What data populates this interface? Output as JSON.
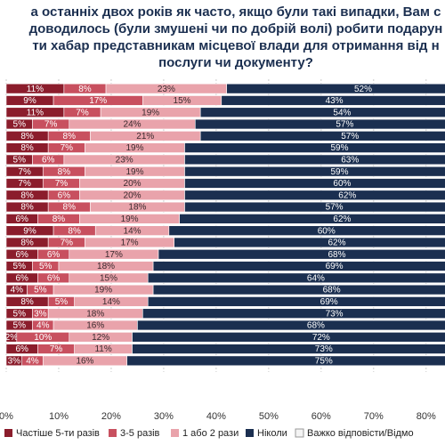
{
  "chart_data": {
    "type": "stacked-bar-horizontal",
    "title_lines": [
      "а останніх двох років як часто, якщо були такі випадки, Вам с",
      "доводилось (були змушені чи по добрій волі) робити подарун",
      "ти хабар представникам місцевої влади для отримання від н",
      "послуги чи документу?"
    ],
    "series": [
      {
        "name": "Частіше 5-ти разів",
        "color": "#8b1d2c",
        "values": [
          11,
          9,
          11,
          5,
          8,
          8,
          5,
          7,
          7,
          8,
          8,
          6,
          9,
          8,
          6,
          5,
          6,
          4,
          8,
          5,
          5,
          2,
          6,
          3
        ],
        "value_labels": [
          "11%",
          "9%",
          "11%",
          "5%",
          "8%",
          "8%",
          "5%",
          "7%",
          "7%",
          "8%",
          "8%",
          "6%",
          "9%",
          "8%",
          "6%",
          "5%",
          "6%",
          "4%",
          "8%",
          "5%",
          "5%",
          "2%",
          "6%",
          "3%"
        ]
      },
      {
        "name": "3-5 разів",
        "color": "#c8505f",
        "values": [
          8,
          17,
          7,
          7,
          8,
          7,
          6,
          8,
          7,
          6,
          8,
          8,
          8,
          7,
          6,
          5,
          6,
          5,
          5,
          3,
          4,
          10,
          7,
          4
        ],
        "value_labels": [
          "8%",
          "17%",
          "7%",
          "7%",
          "8%",
          "7%",
          "6%",
          "8%",
          "7%",
          "6%",
          "8%",
          "8%",
          "8%",
          "7%",
          "6%",
          "5%",
          "6%",
          "5%",
          "5%",
          "3%",
          "4%",
          "10%",
          "7%",
          "4%"
        ]
      },
      {
        "name": "1 або 2 рази",
        "color": "#e9a3ab",
        "values": [
          23,
          15,
          19,
          24,
          21,
          19,
          23,
          19,
          20,
          20,
          18,
          19,
          14,
          17,
          17,
          18,
          15,
          19,
          14,
          18,
          16,
          12,
          11,
          16
        ],
        "value_labels": [
          "23%",
          "15%",
          "19%",
          "24%",
          "21%",
          "19%",
          "23%",
          "19%",
          "20%",
          "20%",
          "18%",
          "19%",
          "14%",
          "17%",
          "17%",
          "18%",
          "15%",
          "19%",
          "14%",
          "18%",
          "16%",
          "12%",
          "11%",
          "16%"
        ]
      },
      {
        "name": "Ніколи",
        "color": "#1b2f50",
        "values": [
          52,
          43,
          54,
          57,
          57,
          59,
          63,
          59,
          60,
          62,
          57,
          62,
          60,
          62,
          68,
          69,
          64,
          68,
          69,
          73,
          68,
          72,
          73,
          75
        ],
        "value_labels": [
          "52%",
          "43%",
          "54%",
          "57%",
          "57%",
          "59%",
          "63%",
          "59%",
          "60%",
          "62%",
          "57%",
          "62%",
          "60%",
          "62%",
          "68%",
          "69%",
          "64%",
          "68%",
          "69%",
          "73%",
          "68%",
          "72%",
          "73%",
          "75%"
        ]
      },
      {
        "name": "Важко відповісти/Відмо",
        "color": "#f4f4f4",
        "values": [
          null,
          null,
          null,
          null,
          null,
          null,
          null,
          null,
          null,
          null,
          null,
          null,
          null,
          null,
          null,
          null,
          null,
          null,
          null,
          null,
          null,
          null,
          null,
          null
        ]
      }
    ],
    "xlim": [
      0,
      83.6
    ],
    "xticks": [
      {
        "value": 0,
        "label": "0%"
      },
      {
        "value": 10,
        "label": "10%"
      },
      {
        "value": 20,
        "label": "20%"
      },
      {
        "value": 30,
        "label": "30%"
      },
      {
        "value": 40,
        "label": "40%"
      },
      {
        "value": 50,
        "label": "50%"
      },
      {
        "value": 60,
        "label": "60%"
      },
      {
        "value": 70,
        "label": "70%"
      },
      {
        "value": 80,
        "label": "80%"
      }
    ],
    "grid": true
  }
}
